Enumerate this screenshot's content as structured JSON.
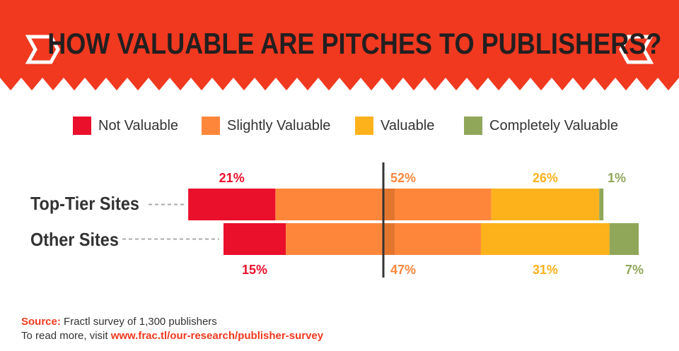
{
  "title": "HOW VALUABLE ARE PITCHES TO PUBLISHERS?",
  "colors": {
    "header": "#f0391f",
    "not_valuable": "#ea0f2b",
    "slightly_valuable": "#fe863b",
    "valuable": "#fdb21c",
    "completely_valuable": "#90a75a",
    "axis": "#333333"
  },
  "chart_data": {
    "type": "bar",
    "orientation": "horizontal",
    "stacked": "diverging",
    "title": "HOW VALUABLE ARE PITCHES TO PUBLISHERS?",
    "categories": [
      "Top-Tier Sites",
      "Other Sites"
    ],
    "series": [
      {
        "name": "Not Valuable",
        "values": [
          21,
          15
        ],
        "labels": [
          "21%",
          "15%"
        ]
      },
      {
        "name": "Slightly Valuable",
        "values": [
          52,
          47
        ],
        "labels": [
          "52%",
          "47%"
        ]
      },
      {
        "name": "Valuable",
        "values": [
          26,
          31
        ],
        "labels": [
          "26%",
          "31%"
        ]
      },
      {
        "name": "Completely Valuable",
        "values": [
          1,
          7
        ],
        "labels": [
          "1%",
          "7%"
        ]
      }
    ],
    "unit": "%",
    "legend": "top"
  },
  "source": {
    "label": "Source:",
    "text": "Fractl survey of 1,300 publishers",
    "more_prefix": "To read more, visit",
    "link": "www.frac.tl/our-research/publisher-survey"
  }
}
